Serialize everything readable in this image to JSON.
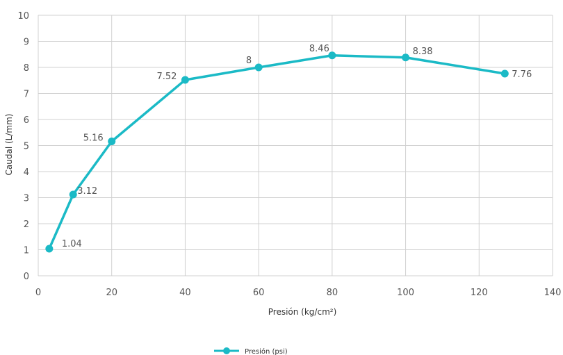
{
  "chart_data": {
    "type": "line",
    "title": "",
    "xlabel": "Presión (kg/cm²)",
    "ylabel": "Caudal (L/mm)",
    "xlim": [
      0,
      140
    ],
    "ylim": [
      0,
      10
    ],
    "xticks": [
      0,
      20,
      40,
      60,
      80,
      100,
      120,
      140
    ],
    "yticks": [
      0,
      1,
      2,
      3,
      4,
      5,
      6,
      7,
      8,
      9,
      10
    ],
    "grid": true,
    "legend_position": "bottom-center",
    "series": [
      {
        "name": "Presión (psi)",
        "color": "#1bbac6",
        "x": [
          3,
          9.5,
          20,
          40,
          60,
          80,
          100,
          127
        ],
        "y": [
          1.04,
          3.12,
          5.16,
          7.52,
          8,
          8.46,
          8.38,
          7.76
        ],
        "labels": [
          "1.04",
          "3.12",
          "5.16",
          "7.52",
          "8",
          "8.46",
          "8.38",
          "7.76"
        ]
      }
    ]
  }
}
